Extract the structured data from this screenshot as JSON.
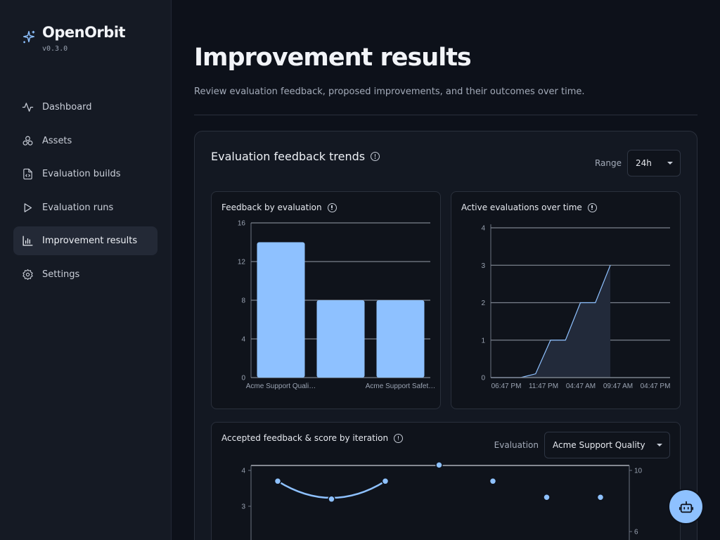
{
  "app": {
    "name": "OpenOrbit",
    "version": "v0.3.0"
  },
  "sidebar": {
    "items": [
      {
        "label": "Dashboard",
        "icon": "activity-icon"
      },
      {
        "label": "Assets",
        "icon": "boxes-icon"
      },
      {
        "label": "Evaluation builds",
        "icon": "file-code-icon"
      },
      {
        "label": "Evaluation runs",
        "icon": "play-icon"
      },
      {
        "label": "Improvement results",
        "icon": "bar-chart-icon",
        "active": true
      },
      {
        "label": "Settings",
        "icon": "gear-icon"
      }
    ]
  },
  "page": {
    "title": "Improvement results",
    "subtitle": "Review evaluation feedback, proposed improvements, and their outcomes over time."
  },
  "trends": {
    "title": "Evaluation feedback trends",
    "range_label": "Range",
    "range_value": "24h"
  },
  "colors": {
    "accent": "#8ec1ff",
    "background": "#0d111a",
    "sidebar": "#151a24"
  },
  "chart_data": [
    {
      "type": "bar",
      "title": "Feedback by evaluation",
      "categories": [
        "Acme Support Quali…",
        "",
        "Acme Support Safet…"
      ],
      "values": [
        14,
        8,
        8
      ],
      "ylim": [
        0,
        16
      ],
      "yticks": [
        0,
        4,
        8,
        12,
        16
      ],
      "grid": true
    },
    {
      "type": "area",
      "title": "Active evaluations over time",
      "xticks": [
        "06:47 PM",
        "11:47 PM",
        "04:47 AM",
        "09:47 AM",
        "04:47 PM"
      ],
      "x": [
        0,
        0.5,
        1.0,
        1.5,
        2.0,
        2.5,
        3.0,
        3.5,
        4.0,
        5.0,
        6.0
      ],
      "y": [
        0,
        0,
        0,
        0.1,
        1,
        1,
        2,
        2,
        3,
        3,
        3
      ],
      "ylim": [
        0,
        4
      ],
      "yticks": [
        0,
        1,
        2,
        3,
        4
      ],
      "grid": true
    },
    {
      "type": "line",
      "title": "Accepted feedback & score by iteration",
      "evaluation_label": "Evaluation",
      "evaluation_value": "Acme Support Quality",
      "left_yticks": [
        3,
        4
      ],
      "right_yticks": [
        6,
        10
      ],
      "series": [
        {
          "points": [
            3.7,
            3.2,
            3.7,
            4.15,
            3.7,
            3.25,
            3.25
          ]
        }
      ]
    }
  ]
}
